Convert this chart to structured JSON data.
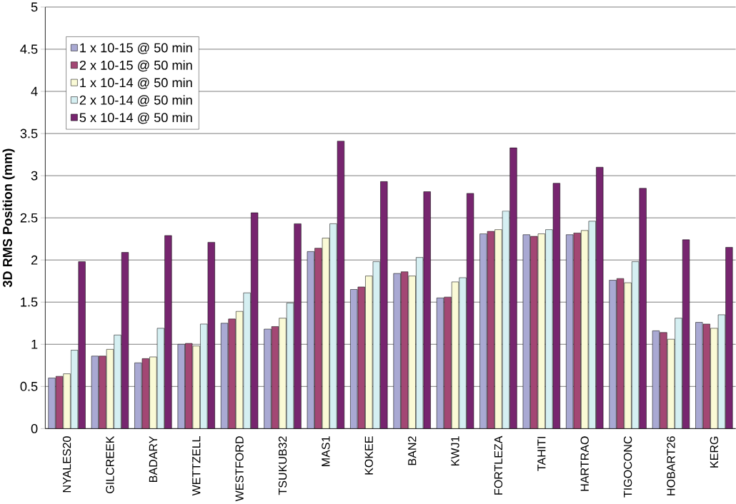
{
  "chart_data": {
    "type": "bar",
    "ylabel": "3D RMS Position (mm)",
    "categories": [
      "NYALES20",
      "GILCREEK",
      "BADARY",
      "WETTZELL",
      "WESTFORD",
      "TSUKUB32",
      "MAS1",
      "KOKEE",
      "BAN2",
      "KWJ1",
      "FORTLEZA",
      "TAHITI",
      "HARTRAO",
      "TIGOCONC",
      "HOBART26",
      "KERG"
    ],
    "series": [
      {
        "name": "1 x 10-15 @ 50 min",
        "color": "#a9a9d3",
        "values": [
          0.6,
          0.86,
          0.78,
          1.0,
          1.25,
          1.18,
          2.1,
          1.65,
          1.84,
          1.55,
          2.31,
          2.3,
          2.3,
          1.76,
          1.16,
          1.26
        ]
      },
      {
        "name": "2 x 10-15 @ 50 min",
        "color": "#a34774",
        "values": [
          0.62,
          0.86,
          0.83,
          1.01,
          1.3,
          1.21,
          2.14,
          1.68,
          1.86,
          1.56,
          2.34,
          2.28,
          2.32,
          1.78,
          1.14,
          1.24
        ]
      },
      {
        "name": "1 x 10-14 @ 50 min",
        "color": "#fafad6",
        "values": [
          0.65,
          0.94,
          0.85,
          0.98,
          1.39,
          1.31,
          2.26,
          1.81,
          1.81,
          1.74,
          2.36,
          2.31,
          2.35,
          1.73,
          1.06,
          1.19
        ]
      },
      {
        "name": "2 x 10-14 @ 50 min",
        "color": "#d5eff2",
        "values": [
          0.93,
          1.11,
          1.19,
          1.24,
          1.61,
          1.49,
          2.43,
          1.98,
          2.03,
          1.79,
          2.58,
          2.36,
          2.46,
          1.98,
          1.31,
          1.35
        ]
      },
      {
        "name": "5 x 10-14 @ 50 min",
        "color": "#77256f",
        "values": [
          1.98,
          2.09,
          2.29,
          2.21,
          2.56,
          2.43,
          3.41,
          2.93,
          2.81,
          2.79,
          3.33,
          2.91,
          3.1,
          2.85,
          2.24,
          2.15
        ]
      }
    ],
    "ylim": [
      0,
      5
    ],
    "yticks": [
      0,
      0.5,
      1,
      1.5,
      2,
      2.5,
      3,
      3.5,
      4,
      4.5,
      5
    ],
    "grid": "y",
    "legend": "top left"
  }
}
